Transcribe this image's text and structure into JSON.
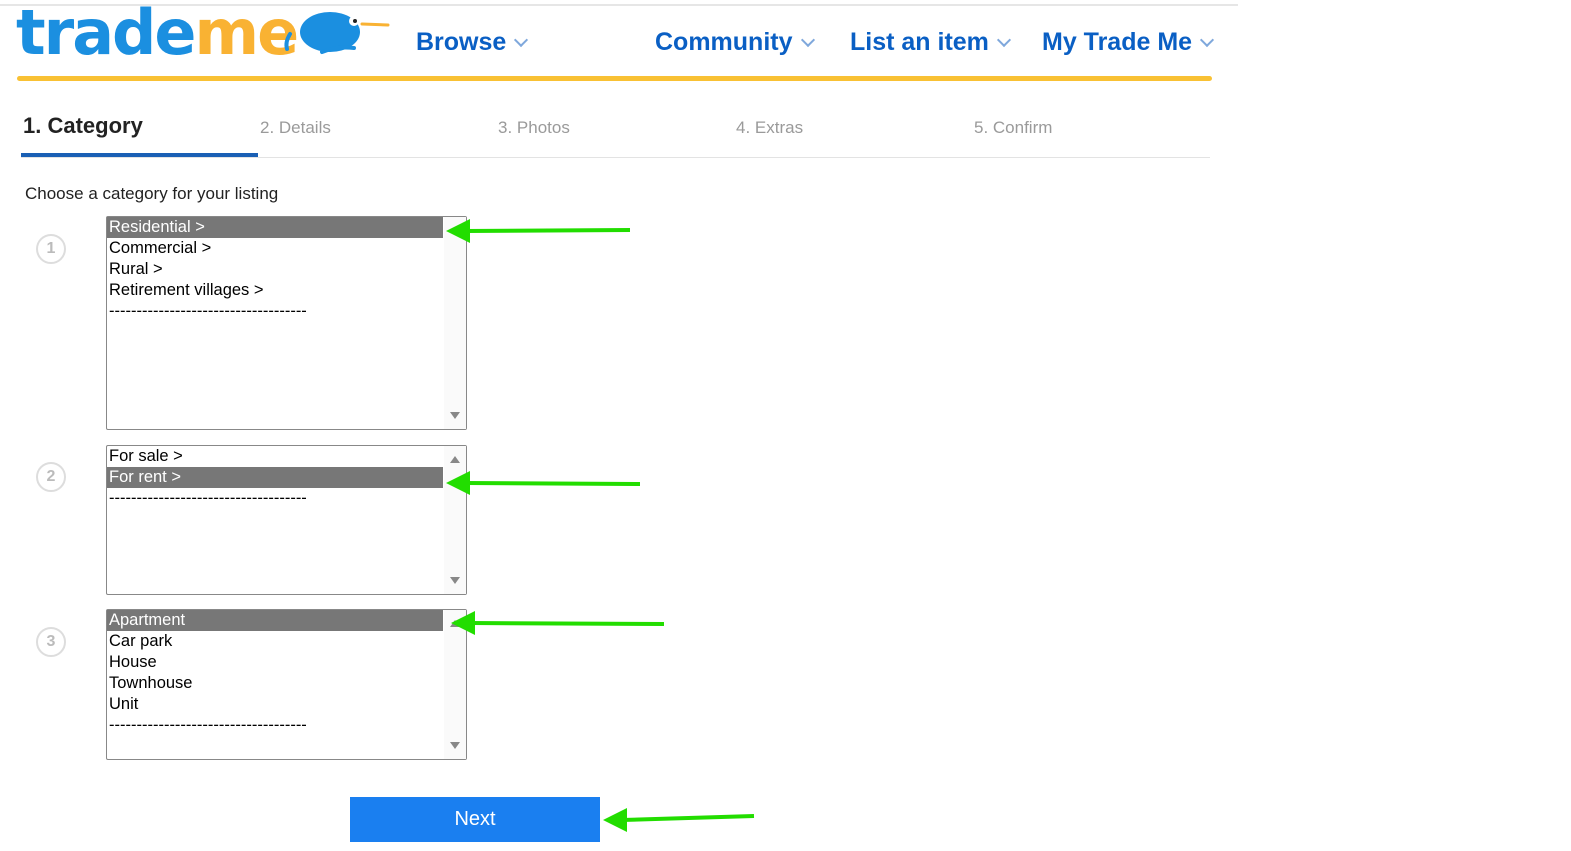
{
  "header": {
    "logo": {
      "part1": "trade",
      "part2": "me"
    },
    "nav": [
      {
        "label": "Browse"
      },
      {
        "label": "Community"
      },
      {
        "label": "List an item"
      },
      {
        "label": "My Trade Me"
      }
    ]
  },
  "steps": [
    {
      "label": "1. Category"
    },
    {
      "label": "2. Details"
    },
    {
      "label": "3. Photos"
    },
    {
      "label": "4. Extras"
    },
    {
      "label": "5. Confirm"
    }
  ],
  "prompt": "Choose a category for your listing",
  "lists": [
    {
      "number": "1",
      "options": [
        "Residential >",
        "Commercial >",
        "Rural >",
        "Retirement villages >",
        "------------------------------------"
      ],
      "selected": "Residential >"
    },
    {
      "number": "2",
      "options": [
        "For sale >",
        "For rent >",
        "------------------------------------"
      ],
      "selected": "For rent >"
    },
    {
      "number": "3",
      "options": [
        "Apartment",
        "Car park",
        "House",
        "Townhouse",
        "Unit",
        "------------------------------------"
      ],
      "selected": "Apartment"
    }
  ],
  "next_label": "Next",
  "colors": {
    "brand_blue": "#1b8fe0",
    "brand_orange": "#f9b233",
    "nav": "#0a5fc4",
    "button": "#1a7ff0",
    "annotation_arrow": "#22dd00"
  }
}
